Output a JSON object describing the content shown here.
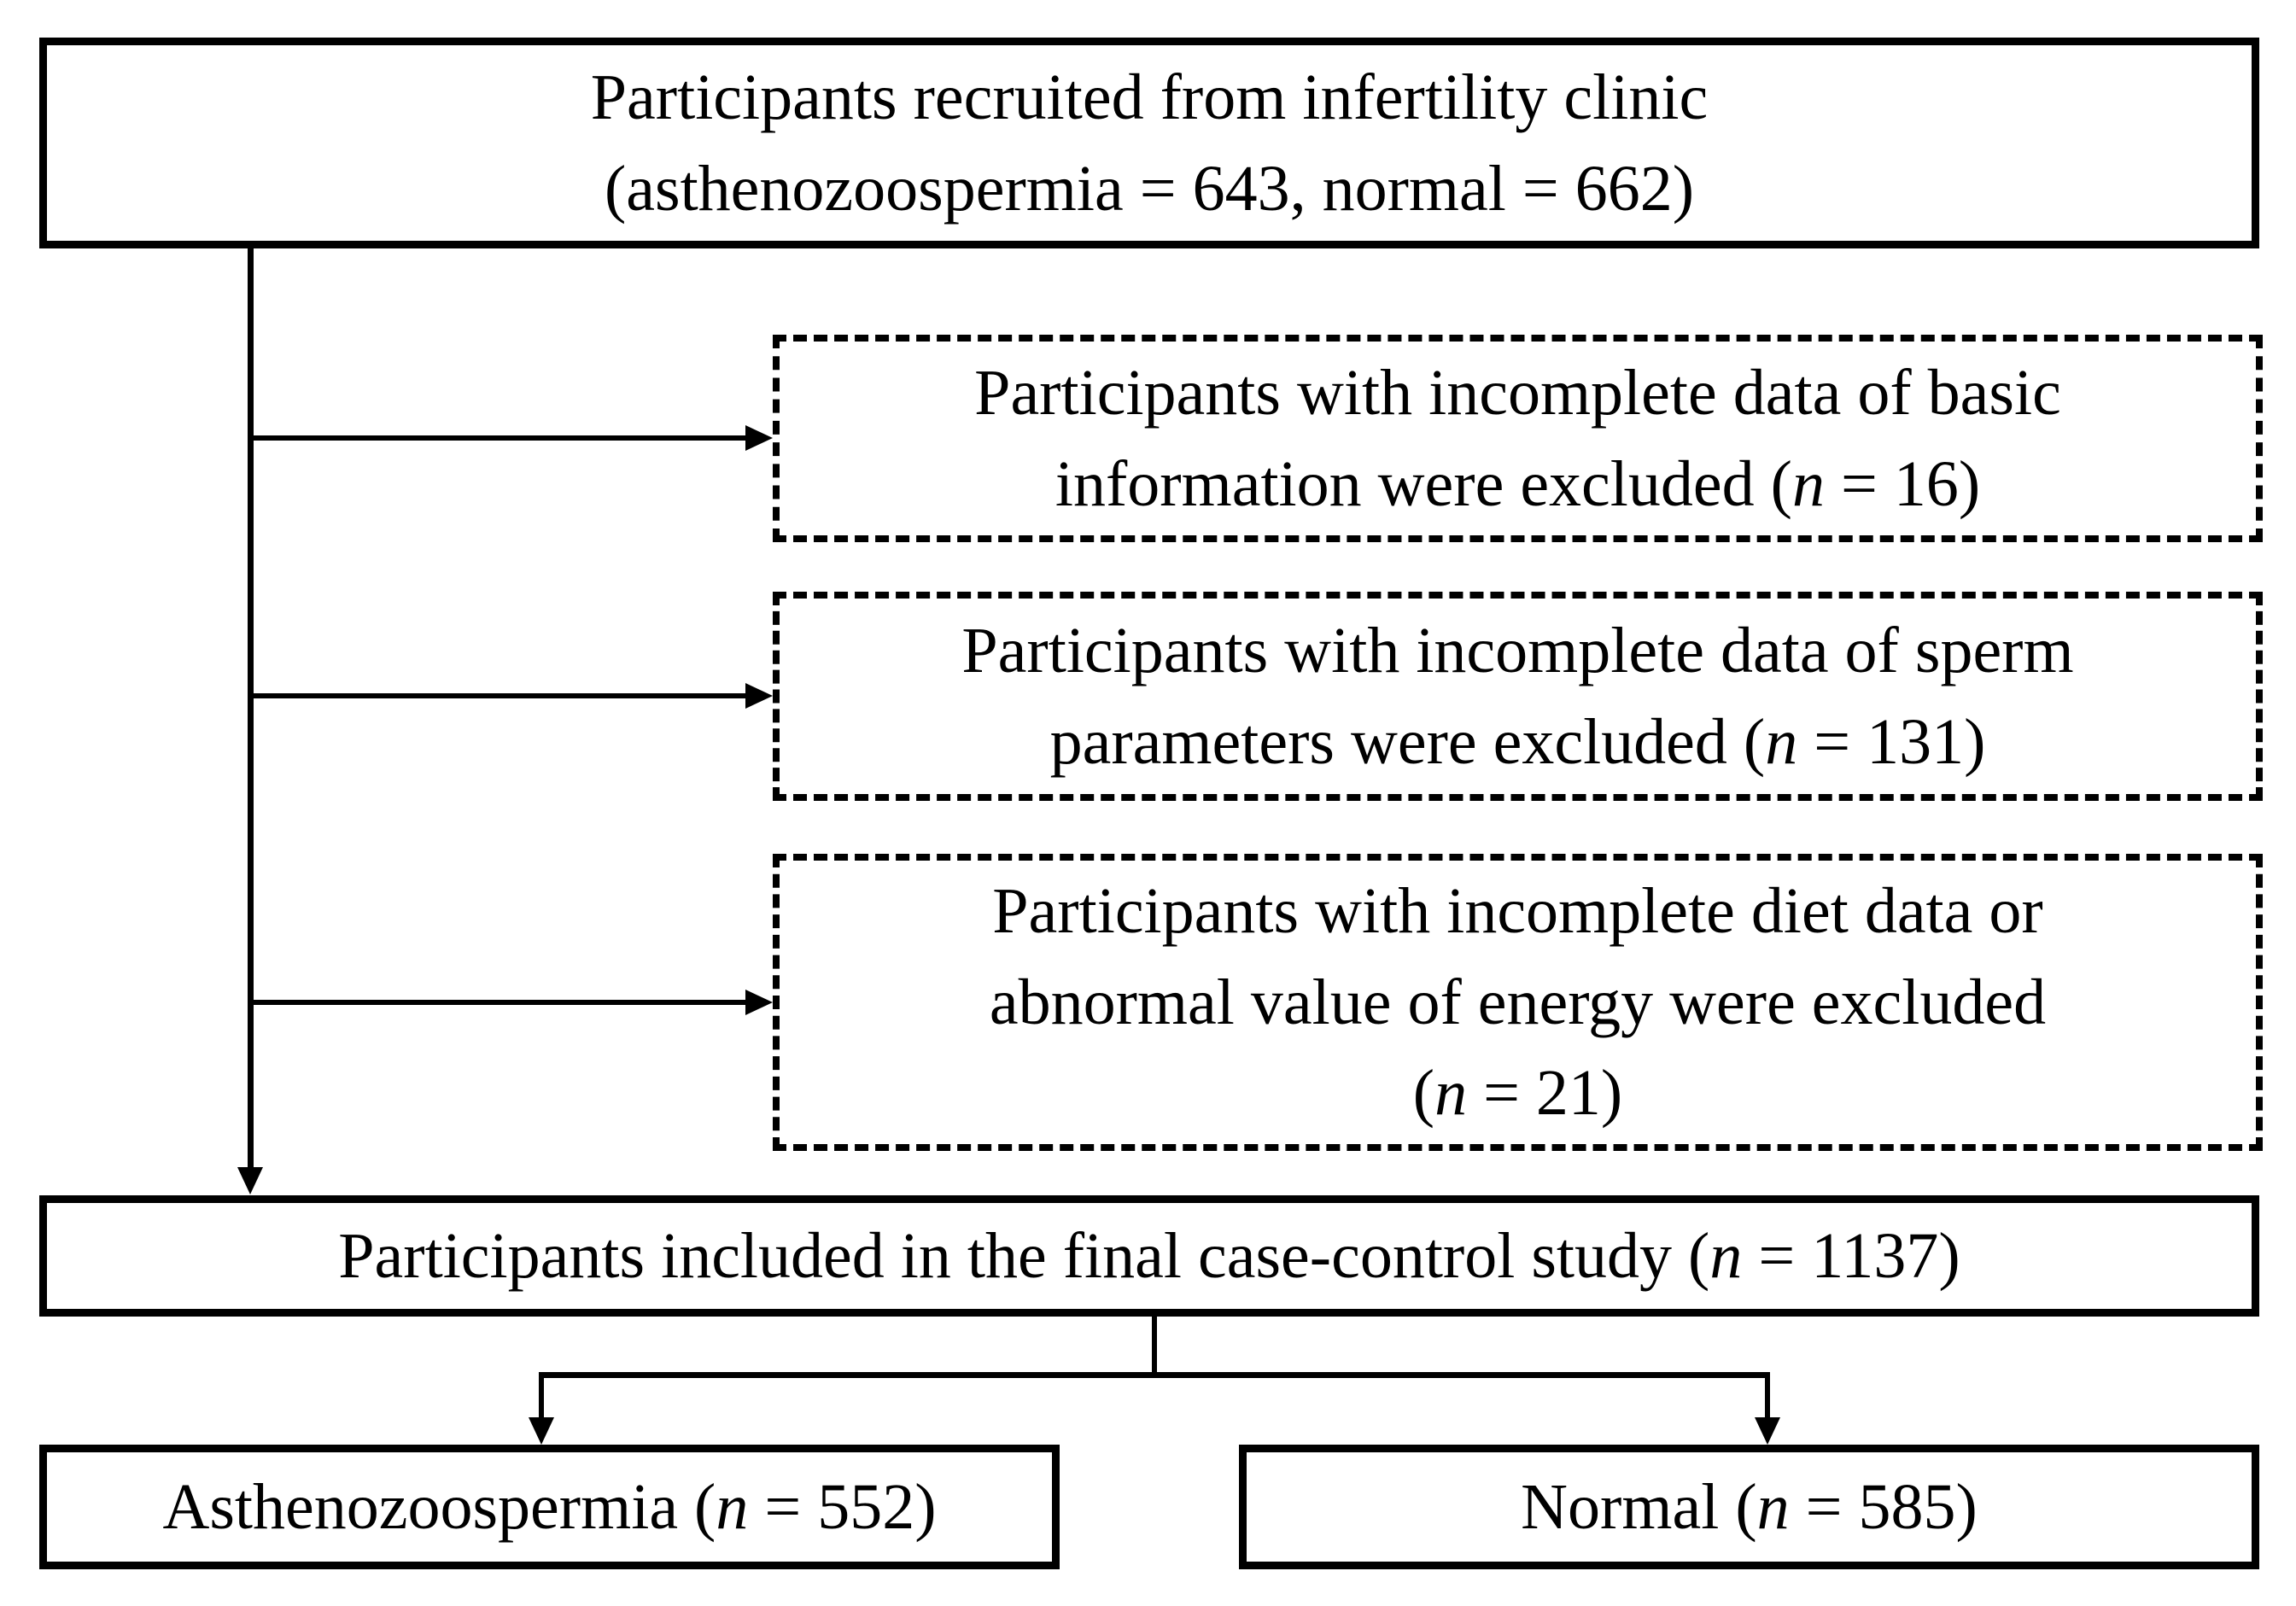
{
  "page": {
    "background_color": "#ffffff",
    "line_color": "#000000",
    "text_color": "#000000"
  },
  "diagram": {
    "type": "flowchart",
    "boxes": {
      "recruited": {
        "border": "solid",
        "lines": [
          [
            {
              "t": "Participants recruited from infertility clinic"
            }
          ],
          [
            {
              "t": "(asthenozoospermia = 643, normal = 662)"
            }
          ]
        ]
      },
      "excluded_basic": {
        "border": "dashed",
        "lines": [
          [
            {
              "t": "Participants with incomplete data of basic"
            }
          ],
          [
            {
              "t": "information were excluded ("
            },
            {
              "t": "n",
              "i": true
            },
            {
              "t": " = 16)"
            }
          ]
        ]
      },
      "excluded_sperm": {
        "border": "dashed",
        "lines": [
          [
            {
              "t": "Participants with incomplete data of sperm"
            }
          ],
          [
            {
              "t": "parameters were excluded ("
            },
            {
              "t": "n",
              "i": true
            },
            {
              "t": " = 131)"
            }
          ]
        ]
      },
      "excluded_diet": {
        "border": "dashed",
        "lines": [
          [
            {
              "t": "Participants with incomplete diet data or"
            }
          ],
          [
            {
              "t": "abnormal value of energy were excluded"
            }
          ],
          [
            {
              "t": "("
            },
            {
              "t": "n",
              "i": true
            },
            {
              "t": " = 21)"
            }
          ]
        ]
      },
      "final_study": {
        "border": "solid",
        "lines": [
          [
            {
              "t": "Participants included in the final case-control study ("
            },
            {
              "t": "n",
              "i": true
            },
            {
              "t": " = 1137)"
            }
          ]
        ]
      },
      "asthenozoospermia": {
        "border": "solid",
        "lines": [
          [
            {
              "t": "Asthenozoospermia ("
            },
            {
              "t": "n",
              "i": true
            },
            {
              "t": " = 552)"
            }
          ]
        ]
      },
      "normal": {
        "border": "solid",
        "lines": [
          [
            {
              "t": "Normal ("
            },
            {
              "t": "n",
              "i": true
            },
            {
              "t": " = 585)"
            }
          ]
        ]
      }
    },
    "counts": {
      "recruited_asthenozoospermia": 643,
      "recruited_normal": 662,
      "excluded_basic_information": 16,
      "excluded_sperm_parameters": 131,
      "excluded_diet_or_energy": 21,
      "final_included": 1137,
      "final_asthenozoospermia": 552,
      "final_normal": 585
    }
  }
}
